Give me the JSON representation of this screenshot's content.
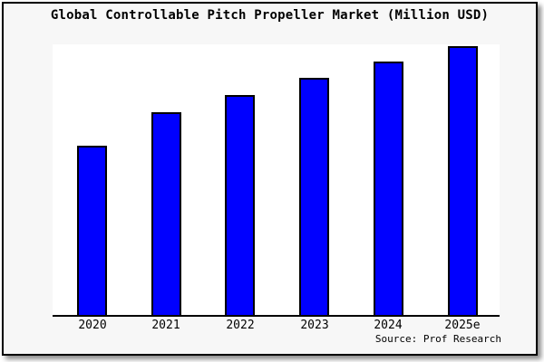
{
  "page": {
    "title": "Global Controllable Pitch Propeller Market (Million USD)",
    "source_credit": "Source: Prof Research"
  },
  "chart_data": {
    "type": "bar",
    "title": "Global Controllable Pitch Propeller Market (Million USD)",
    "categories": [
      "2020",
      "2021",
      "2022",
      "2023",
      "2024",
      "2025e"
    ],
    "values": [
      100,
      120,
      130,
      140,
      150,
      159
    ],
    "values_unit": "relative index estimated from bar heights (2020 = 100); no y-axis tick labels are shown in the chart",
    "xlabel": "",
    "ylabel": "",
    "ylim": [
      0,
      160
    ],
    "grid": false,
    "legend": false,
    "y_axis_shown": false,
    "source": "Source: Prof Research",
    "colors": {
      "bar_fill": "#0000ff",
      "bar_border": "#000000",
      "plot_bg": "#ffffff",
      "outer_bg": "#f7f7f7",
      "frame_border": "#000000",
      "text": "#000000"
    }
  }
}
